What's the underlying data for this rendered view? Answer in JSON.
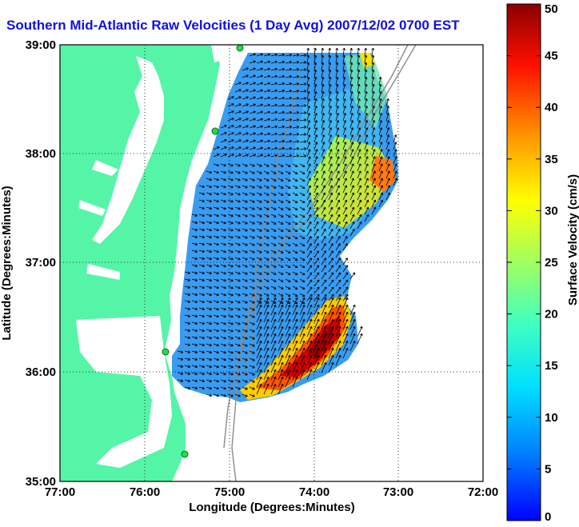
{
  "title": "Southern Mid-Atlantic Raw Velocities (1 Day Avg) 2007/12/02 0700 EST",
  "map": {
    "xlabel": "Longitude (Degrees:Minutes)",
    "ylabel": "Latitude (Degrees:Minutes)",
    "lon_range": [
      -77,
      -72
    ],
    "lat_range": [
      35,
      39
    ],
    "x_ticks": [
      "77:00",
      "76:00",
      "75:00",
      "74:00",
      "73:00",
      "72:00"
    ],
    "y_ticks": [
      "39:00",
      "38:00",
      "37:00",
      "36:00",
      "35:00"
    ],
    "grid": "dotted",
    "colors": {
      "land": "#55f5a8",
      "ocean": "#ffffff",
      "isobath": "#8a8a8a",
      "vector": "#000000"
    },
    "station_markers": [
      {
        "lon": -74.9,
        "lat": 39.0
      },
      {
        "lon": -75.15,
        "lat": 38.22
      },
      {
        "lon": -75.77,
        "lat": 36.18
      },
      {
        "lon": -75.53,
        "lat": 35.24
      }
    ]
  },
  "colorbar": {
    "label": "Surface Velocity (cm/s)",
    "ticks": [
      "0",
      "5",
      "10",
      "15",
      "20",
      "25",
      "30",
      "35",
      "40",
      "45",
      "50"
    ],
    "range": [
      0,
      50
    ],
    "colormap": "jet"
  }
}
